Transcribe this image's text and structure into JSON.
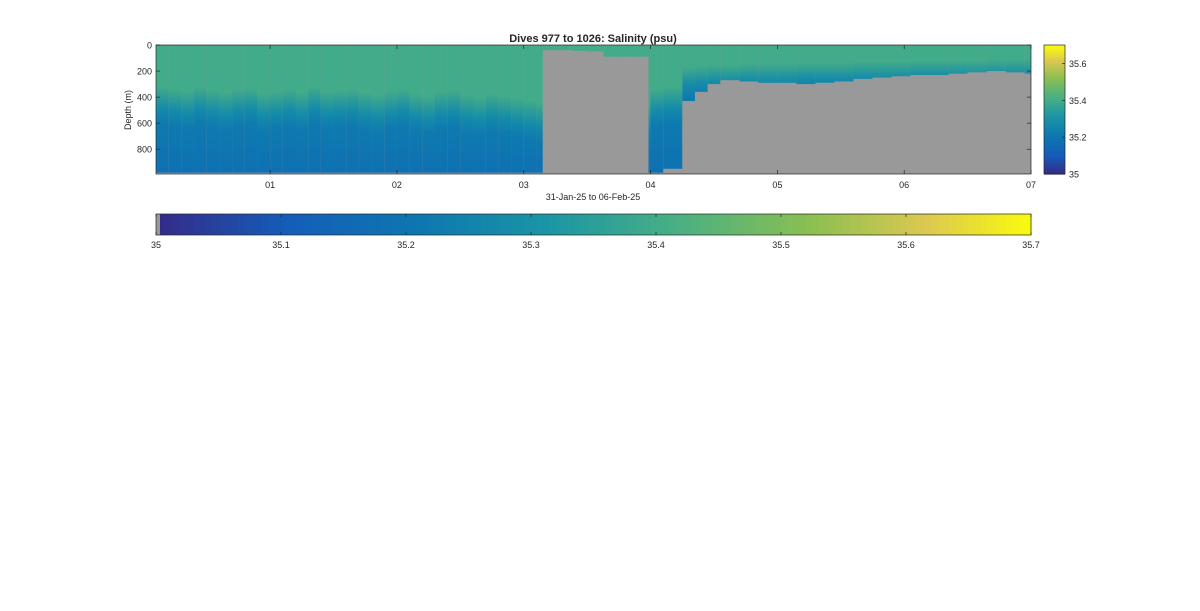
{
  "chart_data": {
    "type": "heatmap",
    "title": "Dives 977 to 1026: Salinity (psu)",
    "xlabel": "31-Jan-25 to 06-Feb-25",
    "ylabel": "Depth (m)",
    "x_tick_labels": [
      "01",
      "02",
      "03",
      "04",
      "05",
      "06",
      "07"
    ],
    "x_ticks_days": [
      1,
      2,
      3,
      4,
      5,
      6,
      7
    ],
    "xlim_days": [
      0.1,
      7.0
    ],
    "y_tick_labels": [
      "0",
      "200",
      "400",
      "600",
      "800"
    ],
    "y_ticks": [
      0,
      200,
      400,
      600,
      800
    ],
    "ylim": [
      0,
      990
    ],
    "y_reversed": true,
    "colormap": "parula",
    "no_data_color": "#999999",
    "side_colorbar": {
      "ticks": [
        35,
        35.2,
        35.4,
        35.6
      ],
      "tick_labels": [
        "35",
        "35.2",
        "35.4",
        "35.6"
      ],
      "clim": [
        35,
        35.7
      ]
    },
    "bottom_colorbar": {
      "ticks": [
        35,
        35.1,
        35.2,
        35.3,
        35.4,
        35.5,
        35.6,
        35.7
      ],
      "tick_labels": [
        "35",
        "35.1",
        "35.2",
        "35.3",
        "35.4",
        "35.5",
        "35.6",
        "35.7"
      ],
      "clim": [
        35,
        35.7
      ]
    },
    "profile_columns": {
      "x_days": [
        0.1,
        0.2,
        0.3,
        0.4,
        0.5,
        0.6,
        0.7,
        0.8,
        0.9,
        1.0,
        1.1,
        1.2,
        1.3,
        1.4,
        1.5,
        1.6,
        1.7,
        1.8,
        1.9,
        2.0,
        2.1,
        2.2,
        2.3,
        2.4,
        2.5,
        2.6,
        2.7,
        2.8,
        2.9,
        3.0,
        3.1,
        3.15,
        4.0,
        4.1,
        4.25,
        4.35,
        4.45,
        4.55,
        4.7,
        4.85,
        5.0,
        5.15,
        5.3,
        5.45,
        5.6,
        5.75,
        5.9,
        6.05,
        6.2,
        6.35,
        6.5,
        6.65,
        6.8,
        6.95
      ],
      "max_depth": [
        980,
        980,
        980,
        980,
        980,
        980,
        980,
        980,
        980,
        980,
        980,
        980,
        980,
        980,
        980,
        980,
        980,
        980,
        980,
        980,
        980,
        980,
        980,
        980,
        980,
        980,
        980,
        980,
        980,
        980,
        980,
        980,
        980,
        950,
        430,
        360,
        300,
        270,
        280,
        290,
        290,
        300,
        290,
        280,
        260,
        250,
        240,
        230,
        230,
        220,
        210,
        200,
        210,
        220
      ],
      "halocline_depth": [
        380,
        400,
        420,
        380,
        410,
        430,
        400,
        390,
        440,
        420,
        400,
        430,
        380,
        420,
        410,
        400,
        430,
        450,
        420,
        400,
        440,
        460,
        420,
        410,
        450,
        470,
        440,
        460,
        480,
        500,
        520,
        520,
        400,
        380,
        200,
        190,
        180,
        180,
        170,
        170,
        170,
        160,
        160,
        160,
        150,
        150,
        150,
        140,
        140,
        140,
        140,
        130,
        130,
        130
      ]
    },
    "no_data_spans": [
      {
        "x_start_days": 3.15,
        "x_end_days": 3.98,
        "top_depth": [
          40,
          40,
          45,
          50,
          90,
          90,
          90
        ]
      }
    ]
  }
}
